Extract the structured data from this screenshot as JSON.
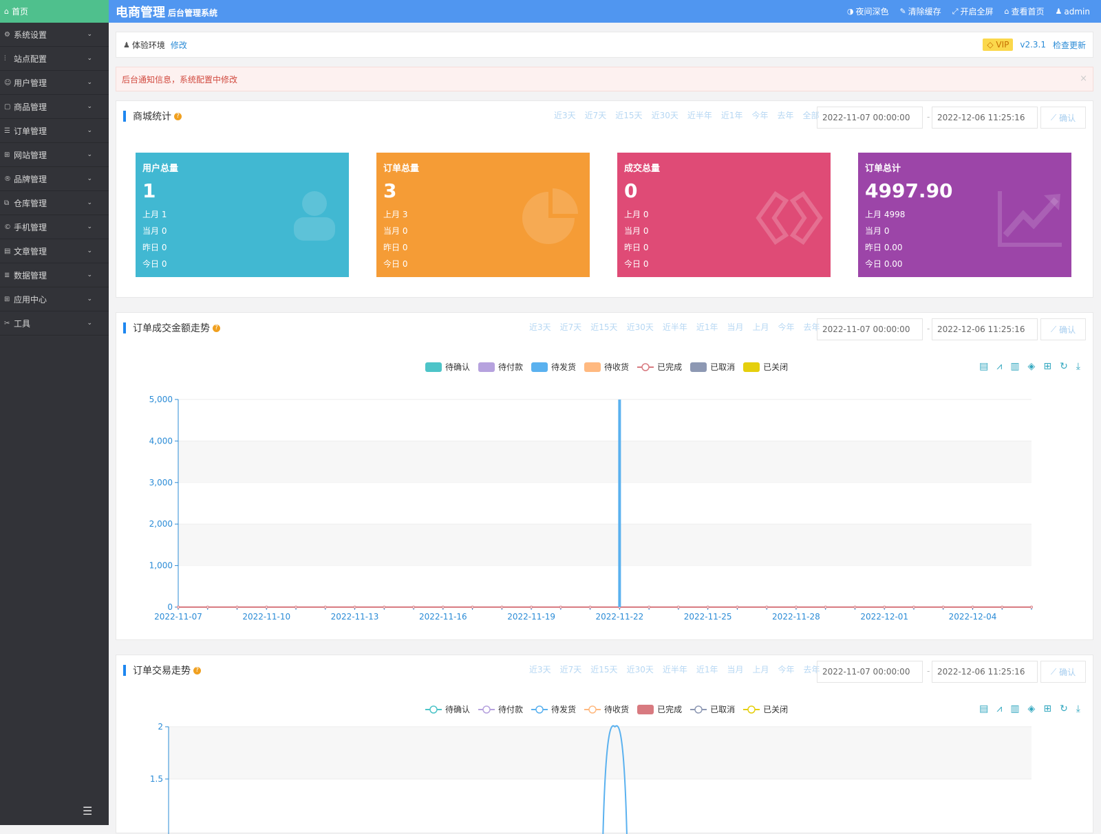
{
  "sidebar": {
    "home": "首页",
    "items": [
      {
        "label": "系统设置",
        "icon": "gear-icon",
        "glyph": "⚙"
      },
      {
        "label": "站点配置",
        "icon": "sliders-icon",
        "glyph": "⫶"
      },
      {
        "label": "用户管理",
        "icon": "users-icon",
        "glyph": "☺"
      },
      {
        "label": "商品管理",
        "icon": "bag-icon",
        "glyph": "▢"
      },
      {
        "label": "订单管理",
        "icon": "list-icon",
        "glyph": "☰"
      },
      {
        "label": "网站管理",
        "icon": "sitemap-icon",
        "glyph": "⊞"
      },
      {
        "label": "品牌管理",
        "icon": "registered-icon",
        "glyph": "®"
      },
      {
        "label": "仓库管理",
        "icon": "cubes-icon",
        "glyph": "⧉"
      },
      {
        "label": "手机管理",
        "icon": "copyright-icon",
        "glyph": "©"
      },
      {
        "label": "文章管理",
        "icon": "file-icon",
        "glyph": "▤"
      },
      {
        "label": "数据管理",
        "icon": "database-icon",
        "glyph": "≣"
      },
      {
        "label": "应用中心",
        "icon": "grid-icon",
        "glyph": "⊞"
      },
      {
        "label": "工具",
        "icon": "tools-icon",
        "glyph": "✂"
      }
    ]
  },
  "header": {
    "brand": "电商管理",
    "brand_sub": "后台管理系统",
    "nav": [
      {
        "label": "夜间深色",
        "icon": "contrast-icon",
        "glyph": "◑"
      },
      {
        "label": "清除缓存",
        "icon": "brush-icon",
        "glyph": "✎"
      },
      {
        "label": "开启全屏",
        "icon": "expand-icon",
        "glyph": "⤢"
      },
      {
        "label": "查看首页",
        "icon": "home-icon",
        "glyph": "⌂"
      },
      {
        "label": "admin",
        "icon": "user-icon",
        "glyph": "♟"
      }
    ]
  },
  "env": {
    "label": "体验环境",
    "edit": "修改",
    "vip": "VIP",
    "version": "v2.3.1",
    "check_update": "检查更新"
  },
  "notice": {
    "text": "后台通知信息，系统配置中修改",
    "close": "×"
  },
  "stats": {
    "title": "商城统计",
    "ranges": [
      "近3天",
      "近7天",
      "近15天",
      "近30天",
      "近半年",
      "近1年",
      "今年",
      "去年",
      "全部"
    ],
    "start": "2022-11-07 00:00:00",
    "end": "2022-12-06 11:25:16",
    "confirm": "确认",
    "cards": [
      {
        "title": "用户总量",
        "value": "1",
        "lines": [
          "上月 1",
          "当月 0",
          "昨日 0",
          "今日 0"
        ],
        "color": "#41b8d2"
      },
      {
        "title": "订单总量",
        "value": "3",
        "lines": [
          "上月 3",
          "当月 0",
          "昨日 0",
          "今日 0"
        ],
        "color": "#f59c36"
      },
      {
        "title": "成交总量",
        "value": "0",
        "lines": [
          "上月 0",
          "当月 0",
          "昨日 0",
          "今日 0"
        ],
        "color": "#df4b76"
      },
      {
        "title": "订单总计",
        "value": "4997.90",
        "lines": [
          "上月 4998",
          "当月 0",
          "昨日 0.00",
          "今日 0.00"
        ],
        "color": "#9c45a8"
      }
    ]
  },
  "chart1": {
    "title": "订单成交金额走势",
    "ranges": [
      "近3天",
      "近7天",
      "近15天",
      "近30天",
      "近半年",
      "近1年",
      "当月",
      "上月",
      "今年",
      "去年"
    ],
    "start": "2022-11-07 00:00:00",
    "end": "2022-12-06 11:25:16",
    "confirm": "确认"
  },
  "chart2": {
    "title": "订单交易走势",
    "ranges": [
      "近3天",
      "近7天",
      "近15天",
      "近30天",
      "近半年",
      "近1年",
      "当月",
      "上月",
      "今年",
      "去年"
    ],
    "start": "2022-11-07 00:00:00",
    "end": "2022-12-06 11:25:16",
    "confirm": "确认"
  },
  "chart_data": [
    {
      "type": "bar",
      "title": "订单成交金额走势",
      "ylim": [
        0,
        5000
      ],
      "yticks": [
        "0",
        "1,000",
        "2,000",
        "3,000",
        "4,000",
        "5,000"
      ],
      "x_tick_labels": [
        "2022-11-07",
        "2022-11-10",
        "2022-11-13",
        "2022-11-16",
        "2022-11-19",
        "2022-11-22",
        "2022-11-25",
        "2022-11-28",
        "2022-12-01",
        "2022-12-04"
      ],
      "x_start": "2022-11-07",
      "n_days": 30,
      "series": [
        {
          "name": "待确认",
          "color": "#4dc4c8",
          "symbol": "rect",
          "values": {}
        },
        {
          "name": "待付款",
          "color": "#b6a2de",
          "symbol": "rect",
          "values": {}
        },
        {
          "name": "待发货",
          "color": "#5ab1ef",
          "symbol": "rect",
          "values": {
            "2022-11-22": 4997.9
          }
        },
        {
          "name": "待收货",
          "color": "#ffb980",
          "symbol": "rect",
          "values": {}
        },
        {
          "name": "已完成",
          "color": "#d87a80",
          "symbol": "circle",
          "values": {}
        },
        {
          "name": "已取消",
          "color": "#8d98b3",
          "symbol": "rect",
          "values": {}
        },
        {
          "name": "已关闭",
          "color": "#e5cf0d",
          "symbol": "rect",
          "values": {}
        }
      ]
    },
    {
      "type": "line",
      "title": "订单交易走势",
      "ylim_visible": [
        1.5,
        2
      ],
      "yticks": [
        "1.5",
        "2"
      ],
      "x_start": "2022-11-07",
      "n_days": 30,
      "series": [
        {
          "name": "待确认",
          "color": "#4dc4c8",
          "symbol": "circle",
          "values": {}
        },
        {
          "name": "待付款",
          "color": "#b6a2de",
          "symbol": "circle",
          "values": {}
        },
        {
          "name": "待发货",
          "color": "#5ab1ef",
          "symbol": "circle",
          "values": {
            "2022-11-22": 2
          }
        },
        {
          "name": "待收货",
          "color": "#ffb980",
          "symbol": "circle",
          "values": {}
        },
        {
          "name": "已完成",
          "color": "#d87a80",
          "symbol": "rect",
          "values": {}
        },
        {
          "name": "已取消",
          "color": "#8d98b3",
          "symbol": "circle",
          "values": {}
        },
        {
          "name": "已关闭",
          "color": "#e5cf0d",
          "symbol": "circle",
          "values": {}
        }
      ]
    }
  ]
}
